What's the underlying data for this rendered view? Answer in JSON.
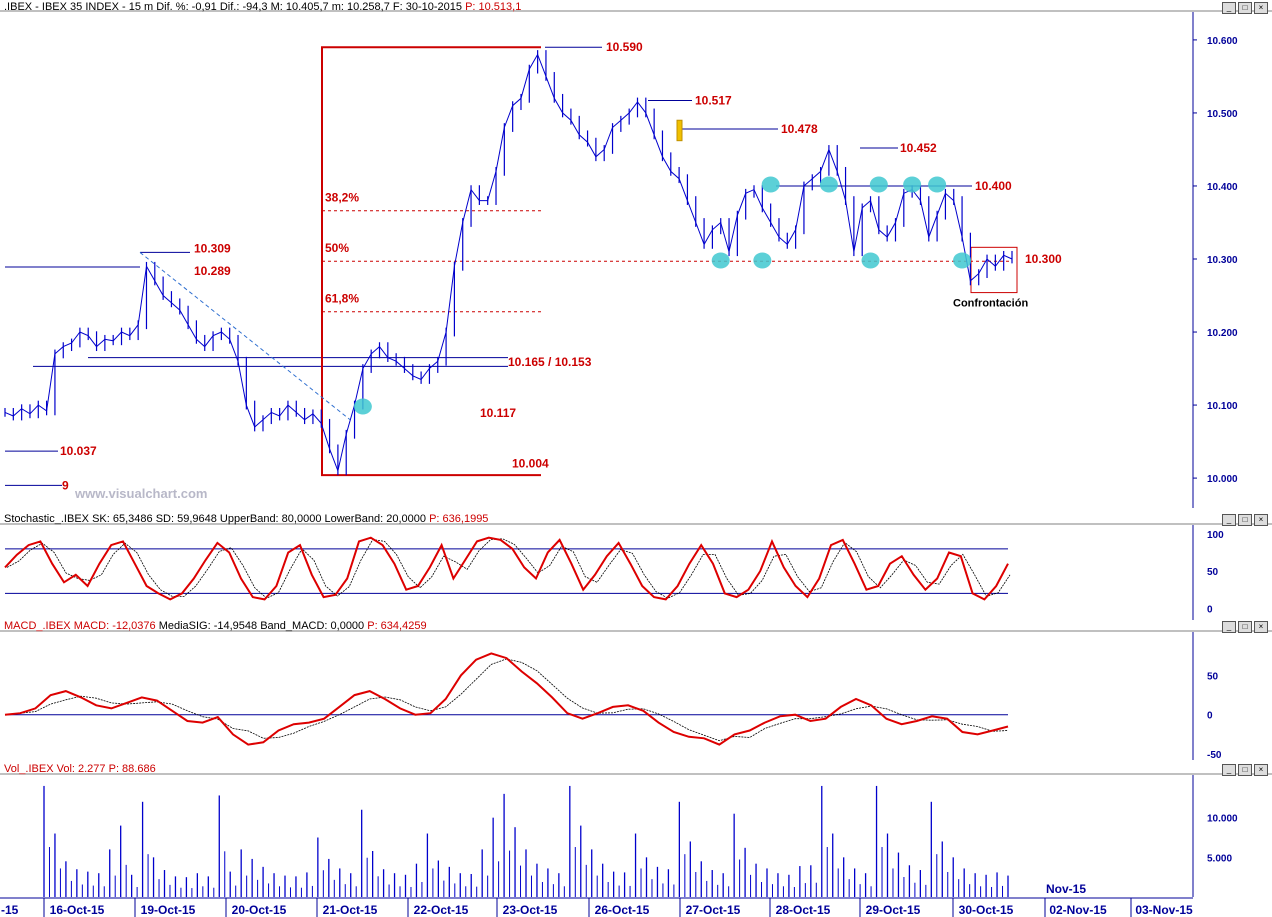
{
  "chart_data": [
    {
      "type": "line",
      "title": ".IBEX - IBEX 35 INDEX - 15 m",
      "header": {
        "symbol": ".IBEX - IBEX 35 INDEX - 15 m",
        "dif_pct": "Dif. %: -0,91",
        "dif": "Dif.: -94,3",
        "max": "M: 10.405,7",
        "min": "m: 10.258,7",
        "date": "F: 30-10-2015",
        "price": "P: 10.513,1"
      },
      "ylim": [
        9970,
        10630
      ],
      "yticks": [
        "10.600",
        "10.500",
        "10.400",
        "10.300",
        "10.200",
        "10.100",
        "10.000"
      ],
      "ytick_values": [
        10600,
        10500,
        10400,
        10300,
        10200,
        10100,
        10000
      ],
      "x_date_labels": [
        "16-Oct-15",
        "19-Oct-15",
        "20-Oct-15",
        "21-Oct-15",
        "22-Oct-15",
        "23-Oct-15",
        "26-Oct-15",
        "27-Oct-15",
        "28-Oct-15",
        "29-Oct-15",
        "30-Oct-15",
        "02-Nov-15",
        "03-Nov-15"
      ],
      "x_extra_labels": [
        "-15",
        "Nov-15"
      ],
      "series": [
        {
          "values": [
            10090,
            10085,
            10095,
            10088,
            10100,
            10092,
            10170,
            10180,
            10185,
            10200,
            10195,
            10180,
            10190,
            10188,
            10200,
            10195,
            10210,
            10290,
            10270,
            10250,
            10240,
            10230,
            10210,
            10190,
            10180,
            10195,
            10200,
            10190,
            10160,
            10100,
            10070,
            10080,
            10090,
            10085,
            10100,
            10090,
            10080,
            10088,
            10075,
            10040,
            10010,
            10060,
            10100,
            10150,
            10170,
            10180,
            10165,
            10160,
            10150,
            10140,
            10135,
            10150,
            10160,
            10200,
            10290,
            10350,
            10395,
            10380,
            10380,
            10420,
            10480,
            10510,
            10520,
            10560,
            10580,
            10550,
            10520,
            10500,
            10490,
            10470,
            10460,
            10440,
            10450,
            10480,
            10490,
            10500,
            10515,
            10500,
            10470,
            10440,
            10420,
            10410,
            10380,
            10350,
            10320,
            10340,
            10350,
            10310,
            10360,
            10390,
            10395,
            10370,
            10350,
            10330,
            10320,
            10340,
            10400,
            10410,
            10420,
            10450,
            10420,
            10380,
            10310,
            10370,
            10380,
            10340,
            10330,
            10350,
            10390,
            10395,
            10380,
            10330,
            10360,
            10390,
            10380,
            10330,
            10270,
            10280,
            10300,
            10290,
            10305,
            10300
          ]
        }
      ],
      "annotations": {
        "levels": [
          "10.590",
          "10.517",
          "10.478",
          "10.452",
          "10.400",
          "10.309",
          "10.289",
          "10.300",
          "10.165 / 10.153",
          "10.117",
          "10.037",
          "10.004",
          "9"
        ],
        "fibonacci": [
          "38,2%",
          "50%",
          "61,8%"
        ],
        "note": "Confrontación",
        "watermark": "www.visualchart.com"
      }
    },
    {
      "type": "line",
      "title": "Stochastic_.IBEX",
      "header": {
        "name": "Stochastic_.IBEX",
        "sk": "SK: 65,3486",
        "sd": "SD: 59,9648",
        "upper": "UpperBand: 80,0000",
        "lower": "LowerBand: 20,0000",
        "price": "P: 636,1995"
      },
      "ylim": [
        -5,
        108
      ],
      "yticks": [
        "100",
        "50",
        "0"
      ],
      "ytick_values": [
        100,
        50,
        0
      ],
      "bands": [
        80,
        20
      ],
      "series": [
        {
          "values": [
            55,
            72,
            85,
            90,
            60,
            35,
            45,
            30,
            60,
            85,
            90,
            60,
            30,
            20,
            12,
            20,
            40,
            65,
            88,
            75,
            40,
            15,
            12,
            30,
            75,
            85,
            45,
            15,
            18,
            40,
            90,
            95,
            85,
            60,
            25,
            30,
            55,
            85,
            40,
            65,
            90,
            95,
            92,
            80,
            55,
            40,
            75,
            92,
            60,
            25,
            45,
            70,
            88,
            60,
            30,
            15,
            12,
            30,
            60,
            85,
            60,
            20,
            15,
            25,
            50,
            90,
            55,
            30,
            15,
            40,
            85,
            92,
            60,
            25,
            30,
            60,
            70,
            45,
            25,
            40,
            75,
            70,
            20,
            12,
            30,
            60
          ]
        }
      ]
    },
    {
      "type": "line",
      "title": "MACD_.IBEX",
      "header": {
        "name": "MACD_.IBEX",
        "macd": "MACD: -12,0376",
        "signal": "MediaSIG: -14,9548",
        "band": "Band_MACD: 0,0000",
        "price": "P: 634,4259"
      },
      "ylim": [
        -55,
        95
      ],
      "yticks": [
        "50",
        "0",
        "-50"
      ],
      "ytick_values": [
        50,
        0,
        -50
      ],
      "zero_line": 0,
      "series": [
        {
          "values": [
            0,
            2,
            8,
            25,
            30,
            22,
            12,
            8,
            15,
            22,
            18,
            5,
            -8,
            -10,
            -3,
            -25,
            -38,
            -35,
            -20,
            -12,
            -10,
            -5,
            10,
            25,
            30,
            20,
            8,
            0,
            2,
            20,
            50,
            70,
            78,
            72,
            55,
            40,
            22,
            2,
            -5,
            2,
            10,
            12,
            5,
            -10,
            -22,
            -28,
            -30,
            -38,
            -25,
            -20,
            -10,
            -2,
            0,
            -8,
            -5,
            10,
            20,
            12,
            -5,
            -12,
            -8,
            -2,
            -5,
            -22,
            -25,
            -20,
            -15
          ]
        }
      ]
    },
    {
      "type": "bar",
      "title": "Vol_.IBEX",
      "header": {
        "name": "Vol_.IBEX",
        "vol": "Vol: 2.277",
        "price": "P: 88.686"
      },
      "ylim": [
        0,
        15000
      ],
      "yticks": [
        "10.000",
        "5.000"
      ],
      "ytick_values": [
        10000,
        5000
      ],
      "values": [
        14000,
        8000,
        4500,
        3500,
        3200,
        3000,
        6000,
        9000,
        2800,
        12000,
        5000,
        3400,
        2600,
        2500,
        3000,
        2600,
        12800,
        3200,
        6000,
        4800,
        3800,
        3000,
        2700,
        2600,
        3100,
        7500,
        4800,
        3600,
        3000,
        11000,
        5800,
        3500,
        3000,
        2800,
        4200,
        8000,
        4600,
        3800,
        3000,
        2900,
        6000,
        10000,
        13000,
        8800,
        6000,
        4200,
        3600,
        3000,
        14000,
        9000,
        6000,
        4200,
        3200,
        3100,
        8000,
        5000,
        3800,
        3500,
        12000,
        7000,
        4500,
        3400,
        3000,
        10500,
        6200,
        4200,
        3600,
        3000,
        2800,
        3900,
        4000,
        14000,
        8000,
        5000,
        3600,
        3000,
        14000,
        8000,
        5600,
        4000,
        3400,
        12000,
        7000,
        5000,
        3600,
        3000,
        2800,
        3100,
        2700
      ]
    }
  ],
  "colors": {
    "price": "#0000cc",
    "level_text": "#cc0000",
    "fib_line": "#cc0000",
    "accent_blue": "#000099",
    "stoch_k": "#dd0000",
    "signal_line": "#000000",
    "marker": "#40c8d0",
    "volume": "#0000cc"
  },
  "icons": [
    "minimize-icon",
    "maximize-icon",
    "close-icon"
  ]
}
